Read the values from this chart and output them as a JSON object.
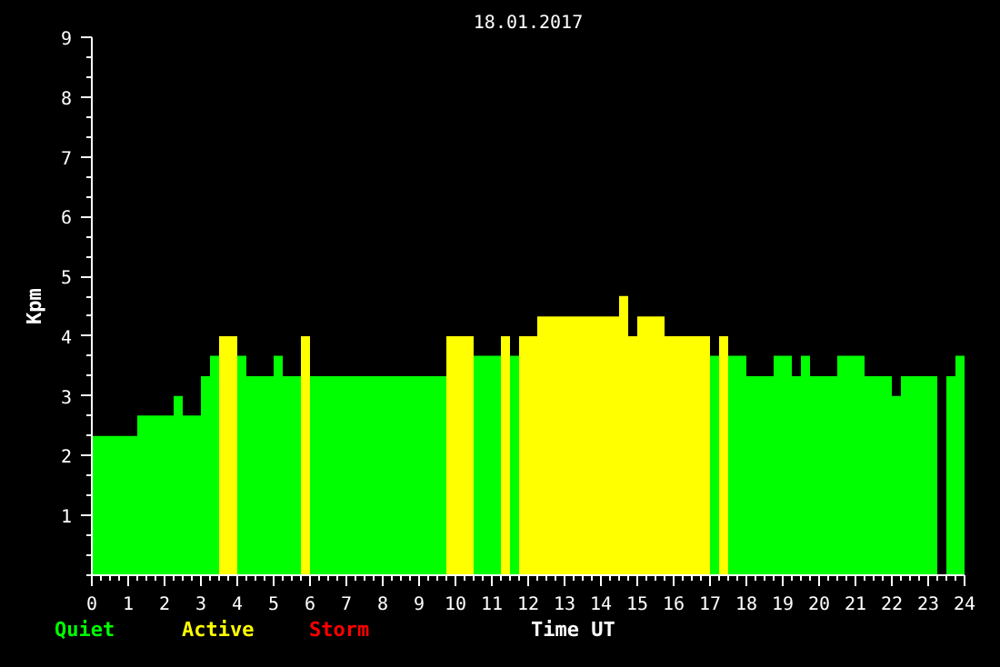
{
  "chart_data": {
    "type": "bar",
    "title": "18.01.2017",
    "xlabel": "Time UT",
    "ylabel": "Kpm",
    "xlim": [
      0,
      24
    ],
    "xticks": [
      0,
      1,
      2,
      3,
      4,
      5,
      6,
      7,
      8,
      9,
      10,
      11,
      12,
      13,
      14,
      15,
      16,
      17,
      18,
      19,
      20,
      21,
      22,
      23,
      24
    ],
    "ylim": [
      0,
      9
    ],
    "yticks": [
      1,
      2,
      3,
      4,
      5,
      6,
      7,
      8,
      9
    ],
    "grid": false,
    "series": [
      {
        "name": "Quiet",
        "color": "#00ff00",
        "x": [
          0.125,
          0.375,
          0.625,
          0.875,
          1.125,
          1.375,
          1.625,
          1.875,
          2.125,
          2.375,
          2.625,
          2.875,
          3.125,
          3.375,
          4.125,
          4.375,
          4.625,
          4.875,
          5.125,
          5.375,
          5.625,
          6.125,
          6.375,
          6.625,
          6.875,
          7.125,
          7.375,
          7.625,
          7.875,
          8.125,
          8.375,
          8.625,
          8.875,
          9.125,
          9.375,
          9.625,
          10.625,
          10.875,
          11.125,
          11.625,
          17.125,
          17.625,
          17.875,
          18.125,
          18.375,
          18.625,
          18.875,
          19.125,
          19.375,
          19.625,
          19.875,
          20.125,
          20.375,
          20.625,
          20.875,
          21.125,
          21.375,
          21.625,
          21.875,
          22.125,
          22.375,
          22.625,
          22.875,
          23.125,
          23.625,
          23.875
        ],
        "values": [
          2.33,
          2.33,
          2.33,
          2.33,
          2.33,
          2.67,
          2.67,
          2.67,
          2.67,
          3,
          2.67,
          2.67,
          3.33,
          3.67,
          3.67,
          3.33,
          3.33,
          3.33,
          3.67,
          3.33,
          3.33,
          3.33,
          3.33,
          3.33,
          3.33,
          3.33,
          3.33,
          3.33,
          3.33,
          3.33,
          3.33,
          3.33,
          3.33,
          3.33,
          3.33,
          3.33,
          3.67,
          3.67,
          3.67,
          3.67,
          3.67,
          3.67,
          3.67,
          3.33,
          3.33,
          3.33,
          3.67,
          3.67,
          3.33,
          3.67,
          3.33,
          3.33,
          3.33,
          3.67,
          3.67,
          3.67,
          3.33,
          3.33,
          3.33,
          3,
          3.33,
          3.33,
          3.33,
          3.33,
          3.33,
          3.67
        ]
      },
      {
        "name": "Active",
        "color": "#ffff00",
        "x": [
          3.625,
          3.875,
          5.875,
          9.875,
          10.125,
          10.375,
          11.375,
          11.875,
          12.125,
          12.375,
          12.625,
          12.875,
          13.125,
          13.375,
          13.625,
          13.875,
          14.125,
          14.375,
          14.625,
          14.875,
          15.125,
          15.375,
          15.625,
          15.875,
          16.125,
          16.375,
          16.625,
          16.875,
          17.375
        ],
        "values": [
          4,
          4,
          4,
          4,
          4,
          4,
          4,
          4,
          4,
          4.33,
          4.33,
          4.33,
          4.33,
          4.33,
          4.33,
          4.33,
          4.33,
          4.33,
          4.67,
          4,
          4.33,
          4.33,
          4.33,
          4,
          4,
          4,
          4,
          4,
          4
        ]
      },
      {
        "name": "Storm",
        "color": "#ff0000"
      }
    ]
  }
}
